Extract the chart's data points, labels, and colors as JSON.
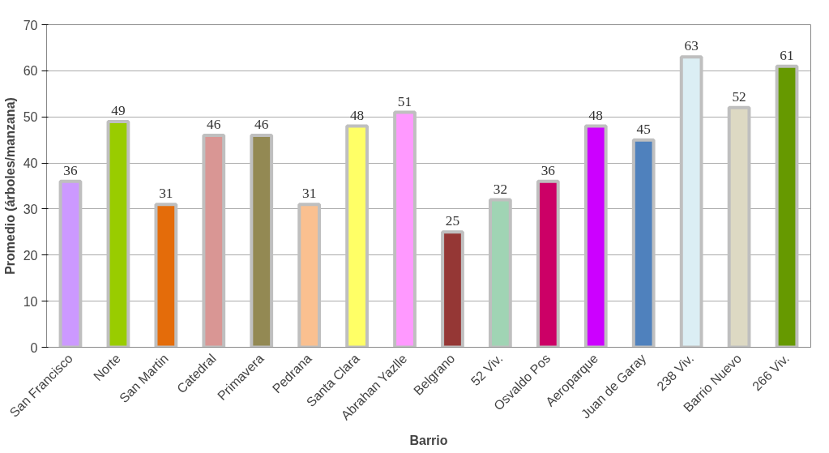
{
  "chart_data": {
    "type": "bar",
    "xlabel": "Barrio",
    "ylabel": "Promedio (árboles/manzana)",
    "categories": [
      "San Francisco",
      "Norte",
      "San Martin",
      "Catedral",
      "Primavera",
      "Pedrana",
      "Santa Clara",
      "Abrahan Yazlle",
      "Belgrano",
      "52 Viv.",
      "Osvaldo Pos",
      "Aeroparque",
      "Juan de Garay",
      "238 Viv.",
      "Barrio Nuevo",
      "266 Viv."
    ],
    "values": [
      36,
      49,
      31,
      46,
      46,
      31,
      48,
      51,
      25,
      32,
      36,
      48,
      45,
      63,
      52,
      61
    ],
    "colors": [
      "#cc99ff",
      "#99cc00",
      "#e46c0a",
      "#d99694",
      "#938953",
      "#fac090",
      "#ffff66",
      "#ff99ff",
      "#953735",
      "#a0d4b4",
      "#cc0066",
      "#cc00ff",
      "#4f81bd",
      "#dbeef4",
      "#ddd9c3",
      "#669900"
    ],
    "ylim": [
      0,
      70
    ],
    "yticks": [
      0,
      10,
      20,
      30,
      40,
      50,
      60,
      70
    ],
    "grid": "y",
    "data_labels": true
  }
}
